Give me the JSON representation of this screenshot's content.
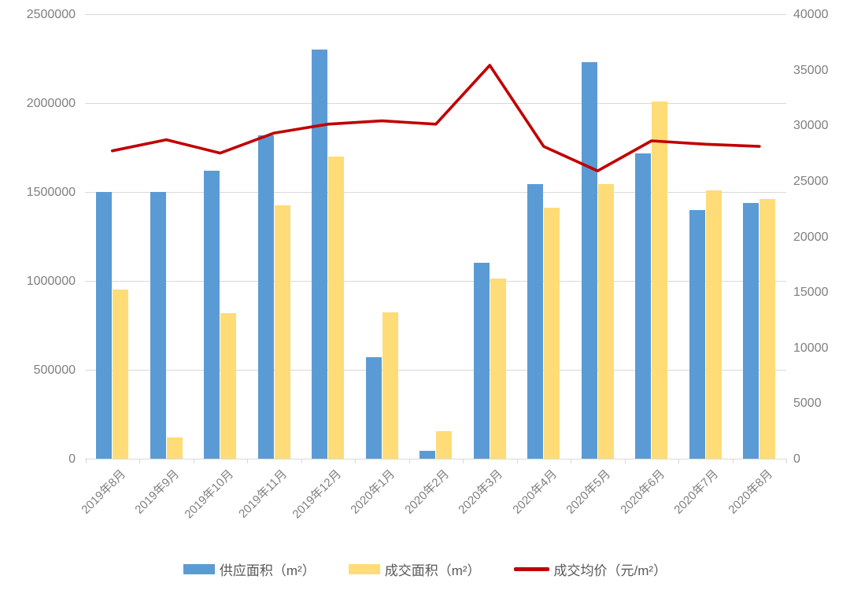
{
  "chart_data": {
    "type": "bar",
    "combo": "bar+line",
    "title": "",
    "categories": [
      "2019年8月",
      "2019年9月",
      "2019年10月",
      "2019年11月",
      "2019年12月",
      "2020年1月",
      "2020年2月",
      "2020年3月",
      "2020年4月",
      "2020年5月",
      "2020年6月",
      "2020年7月",
      "2020年8月"
    ],
    "series": [
      {
        "name": "供应面积（m²）",
        "type": "bar",
        "axis": "left",
        "color": "#5b9bd5",
        "values": [
          1500000,
          1500000,
          1620000,
          1820000,
          2300000,
          570000,
          45000,
          1100000,
          1545000,
          2230000,
          1715000,
          1400000,
          1440000
        ]
      },
      {
        "name": "成交面积（m²）",
        "type": "bar",
        "axis": "left",
        "color": "#ffdc78",
        "values": [
          950000,
          120000,
          820000,
          1425000,
          1700000,
          825000,
          155000,
          1015000,
          1410000,
          1545000,
          2010000,
          1510000,
          1460000
        ]
      },
      {
        "name": "成交均价（元/m²）",
        "type": "line",
        "axis": "right",
        "color": "#c00000",
        "values": [
          27700,
          28700,
          27500,
          29300,
          30100,
          30400,
          30100,
          35400,
          28100,
          25900,
          28600,
          28300,
          28100
        ]
      }
    ],
    "left_axis": {
      "min": 0,
      "max": 2500000,
      "step": 500000,
      "ticks": [
        0,
        500000,
        1000000,
        1500000,
        2000000,
        2500000
      ]
    },
    "right_axis": {
      "min": 0,
      "max": 40000,
      "step": 5000,
      "ticks": [
        0,
        5000,
        10000,
        15000,
        20000,
        25000,
        30000,
        35000,
        40000
      ]
    },
    "grid": true,
    "legend_position": "bottom",
    "colors": {
      "gridline": "#d9d9d9",
      "axis_text": "#7f7f7f",
      "legend_text": "#595959"
    }
  }
}
